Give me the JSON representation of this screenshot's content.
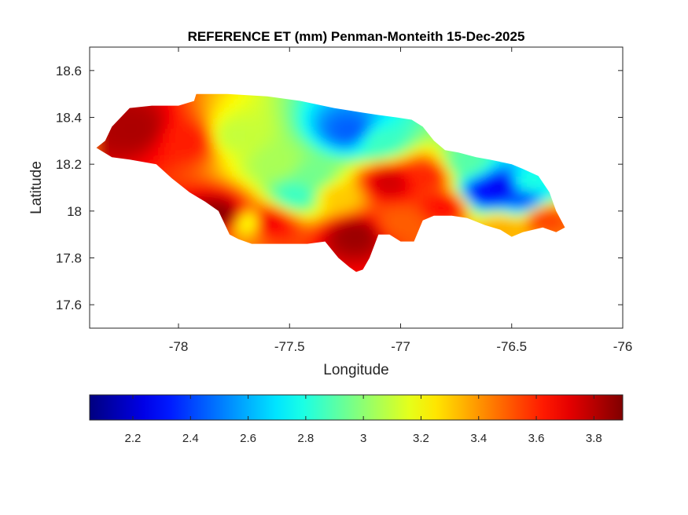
{
  "title": "REFERENCE ET (mm) Penman-Monteith 15-Dec-2025",
  "axes": {
    "xlabel": "Longitude",
    "ylabel": "Latitude",
    "xlim": [
      -78.4,
      -76.0
    ],
    "ylim": [
      17.5,
      18.7
    ],
    "xticks": [
      -78,
      -77.5,
      -77,
      -76.5,
      -76
    ],
    "xtick_labels": [
      "-78",
      "-77.5",
      "-77",
      "-76.5",
      "-76"
    ],
    "yticks": [
      17.6,
      17.8,
      18,
      18.2,
      18.4,
      18.6
    ],
    "ytick_labels": [
      "17.6",
      "17.8",
      "18",
      "18.2",
      "18.4",
      "18.6"
    ],
    "grid": false
  },
  "colorbar": {
    "colormap": "jet",
    "orientation": "horizontal",
    "placement": "below",
    "range": [
      2.05,
      3.9
    ],
    "ticks": [
      2.2,
      2.4,
      2.6,
      2.8,
      3.0,
      3.2,
      3.4,
      3.6,
      3.8
    ],
    "tick_labels": [
      "2.2",
      "2.4",
      "2.6",
      "2.8",
      "3",
      "3.2",
      "3.4",
      "3.6",
      "3.8"
    ],
    "colors": [
      "#00008f",
      "#0000ff",
      "#00ffff",
      "#ffff00",
      "#ff0000",
      "#800000"
    ]
  },
  "chart_data": {
    "type": "heatmap",
    "variable": "Reference ET (mm)",
    "region_outline": [
      [
        -78.37,
        18.27
      ],
      [
        -78.33,
        18.3
      ],
      [
        -78.3,
        18.36
      ],
      [
        -78.22,
        18.44
      ],
      [
        -78.12,
        18.45
      ],
      [
        -78.0,
        18.45
      ],
      [
        -77.93,
        18.47
      ],
      [
        -77.92,
        18.5
      ],
      [
        -77.78,
        18.5
      ],
      [
        -77.6,
        18.49
      ],
      [
        -77.45,
        18.47
      ],
      [
        -77.3,
        18.44
      ],
      [
        -77.17,
        18.42
      ],
      [
        -77.1,
        18.41
      ],
      [
        -77.02,
        18.4
      ],
      [
        -76.95,
        18.39
      ],
      [
        -76.9,
        18.36
      ],
      [
        -76.85,
        18.3
      ],
      [
        -76.8,
        18.26
      ],
      [
        -76.74,
        18.25
      ],
      [
        -76.66,
        18.23
      ],
      [
        -76.6,
        18.22
      ],
      [
        -76.5,
        18.2
      ],
      [
        -76.45,
        18.18
      ],
      [
        -76.38,
        18.15
      ],
      [
        -76.33,
        18.08
      ],
      [
        -76.3,
        18.0
      ],
      [
        -76.26,
        17.93
      ],
      [
        -76.3,
        17.91
      ],
      [
        -76.36,
        17.93
      ],
      [
        -76.45,
        17.91
      ],
      [
        -76.5,
        17.89
      ],
      [
        -76.55,
        17.92
      ],
      [
        -76.62,
        17.94
      ],
      [
        -76.7,
        17.97
      ],
      [
        -76.77,
        17.98
      ],
      [
        -76.85,
        17.98
      ],
      [
        -76.9,
        17.96
      ],
      [
        -76.94,
        17.87
      ],
      [
        -77.0,
        17.87
      ],
      [
        -77.05,
        17.9
      ],
      [
        -77.1,
        17.9
      ],
      [
        -77.14,
        17.8
      ],
      [
        -77.17,
        17.75
      ],
      [
        -77.2,
        17.74
      ],
      [
        -77.23,
        17.76
      ],
      [
        -77.28,
        17.8
      ],
      [
        -77.34,
        17.87
      ],
      [
        -77.42,
        17.86
      ],
      [
        -77.55,
        17.86
      ],
      [
        -77.67,
        17.86
      ],
      [
        -77.73,
        17.88
      ],
      [
        -77.77,
        17.9
      ],
      [
        -77.82,
        18.0
      ],
      [
        -77.88,
        18.04
      ],
      [
        -77.95,
        18.08
      ],
      [
        -78.03,
        18.14
      ],
      [
        -78.1,
        18.2
      ],
      [
        -78.22,
        18.22
      ],
      [
        -78.3,
        18.23
      ]
    ],
    "value_hotspots": [
      {
        "lon": -78.2,
        "lat": 18.35,
        "value": 3.82
      },
      {
        "lon": -77.95,
        "lat": 18.3,
        "value": 3.62
      },
      {
        "lon": -77.75,
        "lat": 18.32,
        "value": 3.1
      },
      {
        "lon": -77.55,
        "lat": 18.2,
        "value": 3.05
      },
      {
        "lon": -77.4,
        "lat": 18.15,
        "value": 2.95
      },
      {
        "lon": -77.22,
        "lat": 18.34,
        "value": 2.45
      },
      {
        "lon": -77.1,
        "lat": 18.3,
        "value": 2.85
      },
      {
        "lon": -77.05,
        "lat": 18.12,
        "value": 3.75
      },
      {
        "lon": -76.88,
        "lat": 18.15,
        "value": 3.6
      },
      {
        "lon": -77.8,
        "lat": 17.98,
        "value": 3.88
      },
      {
        "lon": -77.68,
        "lat": 17.95,
        "value": 3.2
      },
      {
        "lon": -77.6,
        "lat": 17.95,
        "value": 3.7
      },
      {
        "lon": -77.47,
        "lat": 18.07,
        "value": 2.85
      },
      {
        "lon": -77.28,
        "lat": 18.06,
        "value": 3.3
      },
      {
        "lon": -77.2,
        "lat": 17.9,
        "value": 3.85
      },
      {
        "lon": -77.0,
        "lat": 17.95,
        "value": 3.5
      },
      {
        "lon": -76.8,
        "lat": 18.02,
        "value": 3.65
      },
      {
        "lon": -76.62,
        "lat": 18.08,
        "value": 2.3
      },
      {
        "lon": -76.55,
        "lat": 18.1,
        "value": 2.25
      },
      {
        "lon": -76.45,
        "lat": 18.05,
        "value": 2.45
      },
      {
        "lon": -76.42,
        "lat": 18.12,
        "value": 2.8
      },
      {
        "lon": -76.35,
        "lat": 17.97,
        "value": 3.55
      },
      {
        "lon": -76.55,
        "lat": 17.93,
        "value": 3.35
      },
      {
        "lon": -76.7,
        "lat": 18.2,
        "value": 2.9
      }
    ]
  }
}
